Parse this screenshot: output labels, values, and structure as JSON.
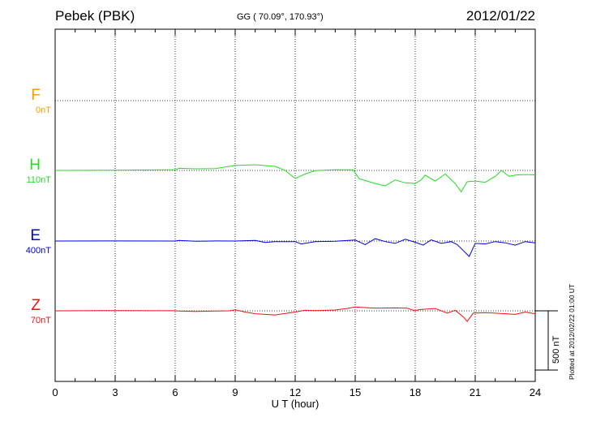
{
  "header": {
    "station": "Pebek (PBK)",
    "coords": "GG ( 70.09°, 170.93°)",
    "date": "2012/01/22"
  },
  "footer": {
    "plotted": "Plotted at 2012/02/22 01:00 UT"
  },
  "chart_data": {
    "type": "line",
    "xlabel": "U T (hour)",
    "xlim": [
      0,
      24
    ],
    "xticks": [
      "0",
      "3",
      "6",
      "9",
      "12",
      "15",
      "18",
      "21",
      "24"
    ],
    "grid": true,
    "scale_bar": {
      "label": "500 nT",
      "value_nT": 500
    },
    "series": [
      {
        "name": "F",
        "base": "0nT",
        "color": "#ff9900",
        "points": []
      },
      {
        "name": "H",
        "base": "110nT",
        "color": "#22dd22",
        "points": [
          [
            0,
            0
          ],
          [
            3,
            2
          ],
          [
            6,
            6
          ],
          [
            6.2,
            18
          ],
          [
            7,
            14
          ],
          [
            8,
            16
          ],
          [
            9,
            42
          ],
          [
            10,
            48
          ],
          [
            11,
            34
          ],
          [
            11.5,
            0
          ],
          [
            12,
            -68
          ],
          [
            12.5,
            -30
          ],
          [
            13,
            -2
          ],
          [
            14,
            6
          ],
          [
            14.9,
            5
          ],
          [
            15.2,
            -70
          ],
          [
            15.6,
            -90
          ],
          [
            16,
            -110
          ],
          [
            16.5,
            -130
          ],
          [
            17,
            -80
          ],
          [
            17.5,
            -105
          ],
          [
            18,
            -110
          ],
          [
            18.3,
            -80
          ],
          [
            18.5,
            -40
          ],
          [
            19,
            -90
          ],
          [
            19.5,
            -30
          ],
          [
            20,
            -110
          ],
          [
            20.3,
            -180
          ],
          [
            20.6,
            -95
          ],
          [
            21,
            -90
          ],
          [
            21.5,
            -100
          ],
          [
            22,
            -50
          ],
          [
            22.3,
            0
          ],
          [
            22.7,
            -50
          ],
          [
            23,
            -40
          ],
          [
            23.5,
            -35
          ],
          [
            24,
            -38
          ]
        ]
      },
      {
        "name": "E",
        "base": "400nT",
        "color": "#0000dd",
        "points": [
          [
            0,
            0
          ],
          [
            3,
            1
          ],
          [
            6,
            0
          ],
          [
            6.2,
            5
          ],
          [
            7,
            -2
          ],
          [
            8,
            1
          ],
          [
            9,
            0
          ],
          [
            10,
            5
          ],
          [
            10.5,
            -12
          ],
          [
            11,
            -5
          ],
          [
            12,
            -5
          ],
          [
            12.3,
            -25
          ],
          [
            13,
            -5
          ],
          [
            14,
            -2
          ],
          [
            15,
            8
          ],
          [
            15.5,
            -30
          ],
          [
            16,
            20
          ],
          [
            16.5,
            -5
          ],
          [
            17,
            -20
          ],
          [
            17.5,
            15
          ],
          [
            18,
            -10
          ],
          [
            18.4,
            -35
          ],
          [
            18.8,
            10
          ],
          [
            19.3,
            -20
          ],
          [
            19.8,
            -5
          ],
          [
            20.1,
            -30
          ],
          [
            20.4,
            -80
          ],
          [
            20.7,
            -130
          ],
          [
            21,
            -20
          ],
          [
            21.5,
            -25
          ],
          [
            22,
            -5
          ],
          [
            22.5,
            -15
          ],
          [
            23,
            -35
          ],
          [
            23.5,
            -5
          ],
          [
            24,
            -15
          ]
        ]
      },
      {
        "name": "Z",
        "base": "70nT",
        "color": "#ee1111",
        "points": [
          [
            0,
            0
          ],
          [
            3,
            2
          ],
          [
            6,
            1
          ],
          [
            6.2,
            -2
          ],
          [
            7,
            -5
          ],
          [
            8,
            -2
          ],
          [
            8.7,
            0
          ],
          [
            9,
            8
          ],
          [
            9.5,
            -10
          ],
          [
            10,
            -25
          ],
          [
            10.5,
            -30
          ],
          [
            11,
            -35
          ],
          [
            11.4,
            -25
          ],
          [
            12,
            -10
          ],
          [
            12.5,
            5
          ],
          [
            13,
            2
          ],
          [
            14,
            7
          ],
          [
            14.6,
            20
          ],
          [
            15,
            32
          ],
          [
            16,
            22
          ],
          [
            17,
            25
          ],
          [
            17.6,
            22
          ],
          [
            18,
            0
          ],
          [
            18.2,
            10
          ],
          [
            19,
            20
          ],
          [
            19.6,
            -20
          ],
          [
            20,
            5
          ],
          [
            20.4,
            -50
          ],
          [
            20.6,
            -90
          ],
          [
            20.9,
            -20
          ],
          [
            21.5,
            -15
          ],
          [
            22,
            -20
          ],
          [
            22.5,
            -25
          ],
          [
            23,
            -30
          ],
          [
            23.5,
            -10
          ],
          [
            24,
            -25
          ]
        ]
      }
    ]
  }
}
